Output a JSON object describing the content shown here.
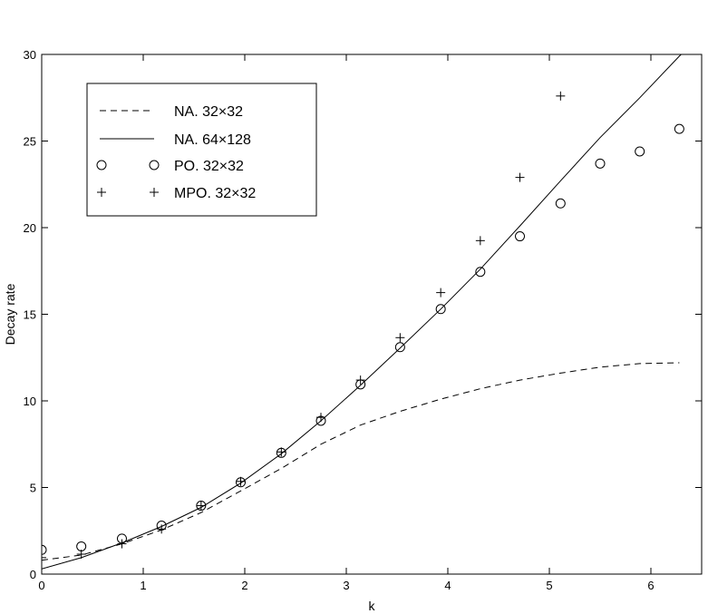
{
  "chart_data": {
    "type": "line",
    "title": "",
    "xlabel": "k",
    "ylabel": "Decay rate",
    "xlim": [
      0,
      6.5
    ],
    "ylim": [
      0,
      30
    ],
    "xticks": [
      0,
      1,
      2,
      3,
      4,
      5,
      6
    ],
    "yticks": [
      0,
      5,
      10,
      15,
      20,
      25,
      30
    ],
    "grid": false,
    "legend_position": "top-left",
    "series": [
      {
        "name": "NA. 32×32",
        "style": "dashed",
        "x": [
          0,
          0.39,
          0.79,
          1.18,
          1.57,
          1.96,
          2.36,
          2.75,
          3.14,
          3.53,
          3.93,
          4.32,
          4.71,
          5.11,
          5.5,
          5.89,
          6.28
        ],
        "y": [
          0.8,
          1.1,
          1.75,
          2.55,
          3.55,
          4.8,
          6.1,
          7.5,
          8.6,
          9.4,
          10.1,
          10.7,
          11.2,
          11.6,
          11.95,
          12.15,
          12.2
        ]
      },
      {
        "name": "NA. 64×128",
        "style": "solid",
        "x": [
          0,
          0.39,
          0.79,
          1.18,
          1.57,
          1.96,
          2.36,
          2.75,
          3.14,
          3.53,
          3.93,
          4.32,
          4.71,
          5.11,
          5.5,
          5.89,
          6.28,
          6.5
        ],
        "y": [
          0.3,
          0.95,
          1.8,
          2.75,
          3.85,
          5.25,
          6.95,
          8.85,
          10.9,
          13.05,
          15.3,
          17.6,
          20.1,
          22.7,
          25.2,
          27.5,
          29.9,
          31.1
        ]
      },
      {
        "name": "PO. 32×32",
        "style": "circle",
        "x": [
          0,
          0.39,
          0.79,
          1.18,
          1.57,
          1.96,
          2.36,
          2.75,
          3.14,
          3.53,
          3.93,
          4.32,
          4.71,
          5.11,
          5.5,
          5.89,
          6.28
        ],
        "y": [
          1.4,
          1.6,
          2.05,
          2.8,
          3.95,
          5.3,
          7.0,
          8.85,
          10.95,
          13.1,
          15.3,
          17.45,
          19.5,
          21.4,
          23.7,
          24.4,
          25.7
        ]
      },
      {
        "name": "MPO. 32×32",
        "style": "plus",
        "x": [
          0,
          0.39,
          0.79,
          1.18,
          1.57,
          1.96,
          2.36,
          2.75,
          3.14,
          3.53,
          3.93,
          4.32,
          4.71,
          5.11
        ],
        "y": [
          0.95,
          1.15,
          1.75,
          2.6,
          3.95,
          5.35,
          7.05,
          9.05,
          11.2,
          13.65,
          16.25,
          19.25,
          22.9,
          27.6
        ]
      }
    ]
  }
}
